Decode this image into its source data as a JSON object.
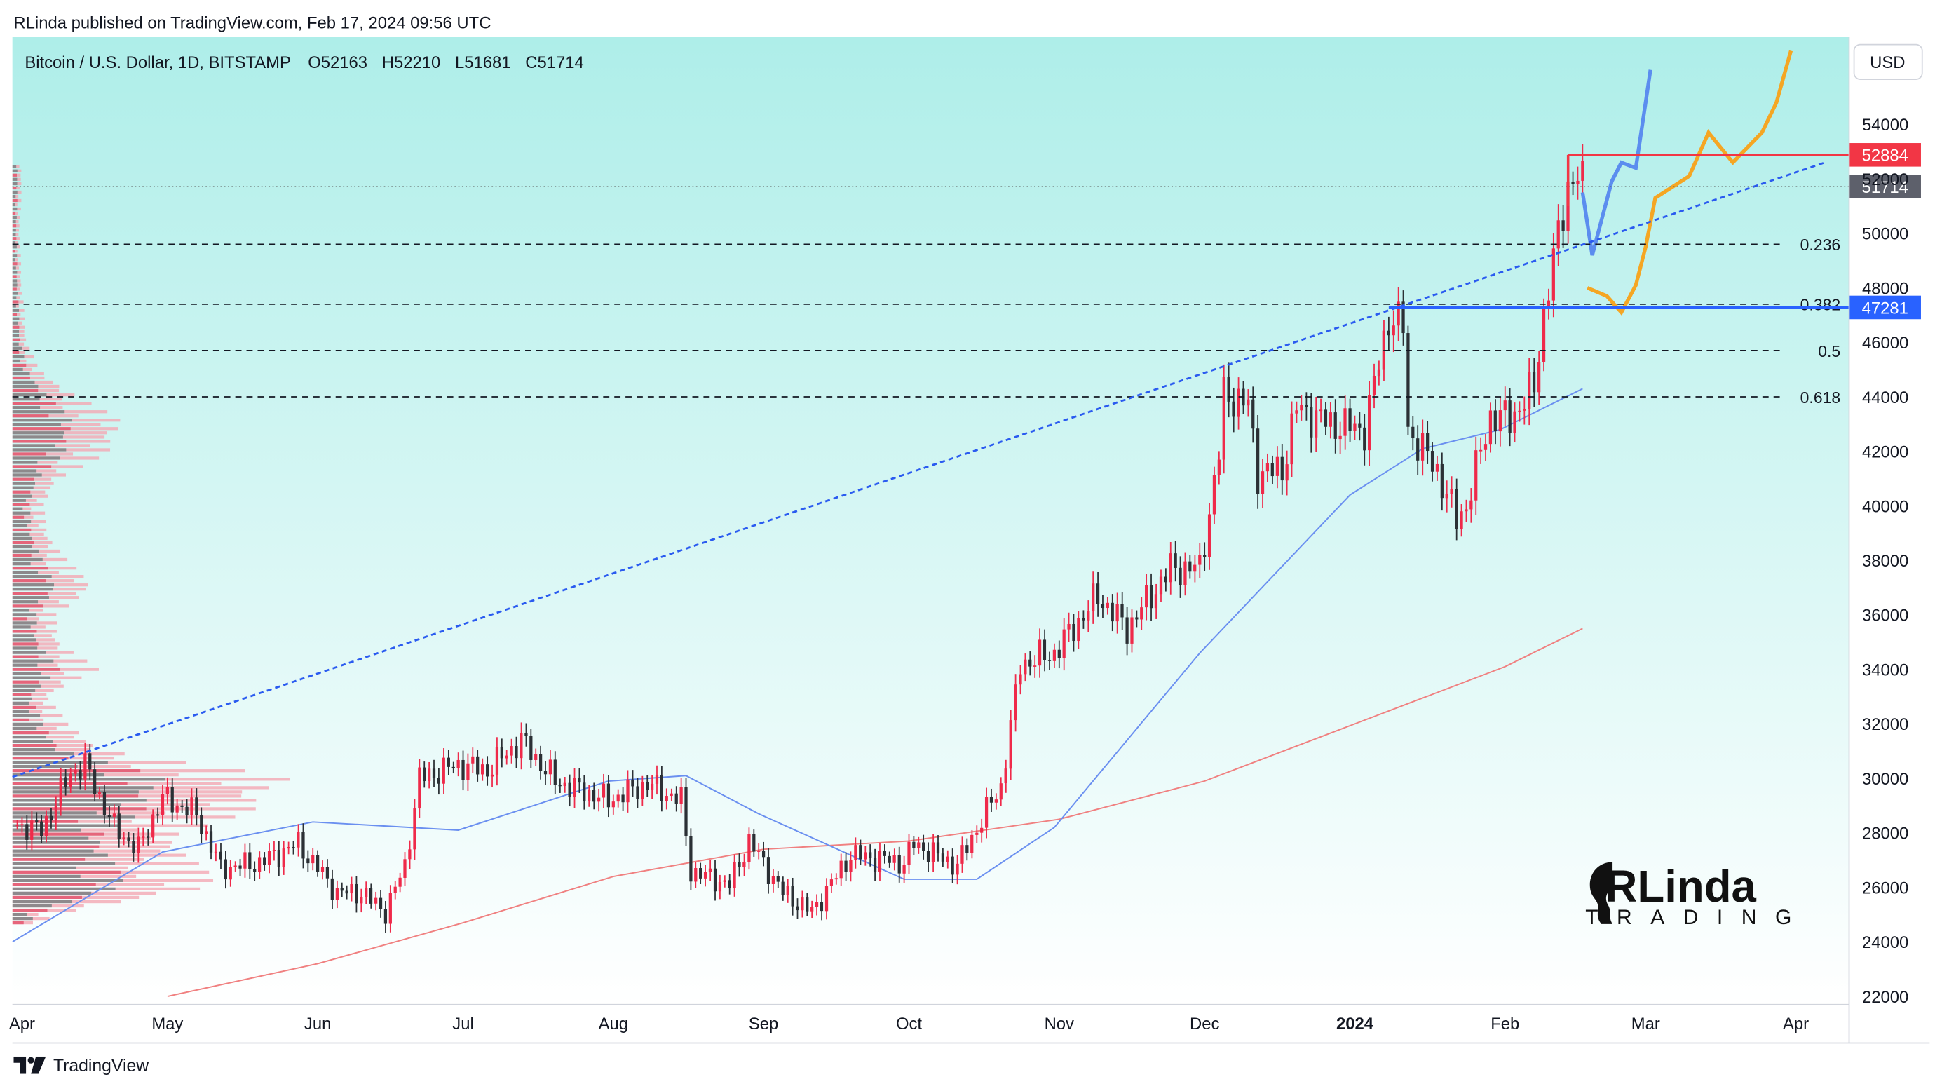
{
  "header": {
    "published": "RLinda published on TradingView.com, Feb 17, 2024 09:56 UTC",
    "legend": "Bitcoin / U.S. Dollar, 1D, BITSTAMP",
    "ohlc": {
      "O": "52163",
      "H": "52210",
      "L": "51681",
      "C": "51714"
    }
  },
  "footer": {
    "brand": "TradingView",
    "icon": "tradingview-logo-icon"
  },
  "currency_badge": "USD",
  "logo": {
    "line1": "RLinda",
    "line2": "TRADING"
  },
  "colors": {
    "up": "#ef2a4a",
    "down": "#2b3035",
    "ma_fast": "#6a8ff0",
    "ma_slow": "#f08080",
    "trend": "#2a5bf0",
    "resistance": "#f23645",
    "support": "#2962ff",
    "proj_blue": "#5b8def",
    "proj_orange": "#f5a623",
    "bg_top": "#aeeee9",
    "bg_bottom": "#ffffff"
  },
  "chart_data": {
    "type": "candlestick",
    "symbol": "Bitcoin / U.S. Dollar",
    "timeframe": "1D",
    "exchange": "BITSTAMP",
    "ylim": [
      22000,
      57200
    ],
    "y_ticks": [
      "22000",
      "24000",
      "26000",
      "28000",
      "30000",
      "32000",
      "34000",
      "36000",
      "38000",
      "40000",
      "42000",
      "44000",
      "46000",
      "48000",
      "50000",
      "52000",
      "54000",
      "56000"
    ],
    "x_labels": [
      {
        "label": "Apr",
        "date": "2023-04-01"
      },
      {
        "label": "May",
        "date": "2023-05-01"
      },
      {
        "label": "Jun",
        "date": "2023-06-01"
      },
      {
        "label": "Jul",
        "date": "2023-07-01"
      },
      {
        "label": "Aug",
        "date": "2023-08-01"
      },
      {
        "label": "Sep",
        "date": "2023-09-01"
      },
      {
        "label": "Oct",
        "date": "2023-10-01"
      },
      {
        "label": "Nov",
        "date": "2023-11-01"
      },
      {
        "label": "Dec",
        "date": "2023-12-01"
      },
      {
        "label": "2024",
        "date": "2024-01-01",
        "bold": true
      },
      {
        "label": "Feb",
        "date": "2024-02-01"
      },
      {
        "label": "Mar",
        "date": "2024-03-01"
      },
      {
        "label": "Apr",
        "date": "2024-04-01"
      }
    ],
    "x_start": "2023-03-30",
    "x_end": "2024-04-12",
    "price_anchors": [
      [
        "2023-03-31",
        28300
      ],
      [
        "2023-04-05",
        28100
      ],
      [
        "2023-04-11",
        30200
      ],
      [
        "2023-04-14",
        30500
      ],
      [
        "2023-04-20",
        28200
      ],
      [
        "2023-04-25",
        27400
      ],
      [
        "2023-04-30",
        29300
      ],
      [
        "2023-05-07",
        28700
      ],
      [
        "2023-05-12",
        26700
      ],
      [
        "2023-05-20",
        26900
      ],
      [
        "2023-05-28",
        27600
      ],
      [
        "2023-06-05",
        25800
      ],
      [
        "2023-06-10",
        25800
      ],
      [
        "2023-06-15",
        25100
      ],
      [
        "2023-06-19",
        26800
      ],
      [
        "2023-06-22",
        30000
      ],
      [
        "2023-06-30",
        30500
      ],
      [
        "2023-07-06",
        30300
      ],
      [
        "2023-07-13",
        31400
      ],
      [
        "2023-07-20",
        29900
      ],
      [
        "2023-07-31",
        29200
      ],
      [
        "2023-08-08",
        29800
      ],
      [
        "2023-08-15",
        29200
      ],
      [
        "2023-08-17",
        26600
      ],
      [
        "2023-08-25",
        26100
      ],
      [
        "2023-08-29",
        27700
      ],
      [
        "2023-09-05",
        25800
      ],
      [
        "2023-09-11",
        25100
      ],
      [
        "2023-09-19",
        27200
      ],
      [
        "2023-09-30",
        26900
      ],
      [
        "2023-10-02",
        27600
      ],
      [
        "2023-10-11",
        26800
      ],
      [
        "2023-10-16",
        28500
      ],
      [
        "2023-10-20",
        29700
      ],
      [
        "2023-10-23",
        33000
      ],
      [
        "2023-10-24",
        34200
      ],
      [
        "2023-10-31",
        34600
      ],
      [
        "2023-11-09",
        36700
      ],
      [
        "2023-11-15",
        35500
      ],
      [
        "2023-11-24",
        37700
      ],
      [
        "2023-11-30",
        37700
      ],
      [
        "2023-12-04",
        41900
      ],
      [
        "2023-12-05",
        44100
      ],
      [
        "2023-12-10",
        43700
      ],
      [
        "2023-12-12",
        41200
      ],
      [
        "2023-12-17",
        41300
      ],
      [
        "2023-12-20",
        43600
      ],
      [
        "2023-12-27",
        43000
      ],
      [
        "2024-01-03",
        42800
      ],
      [
        "2024-01-08",
        46900
      ],
      [
        "2024-01-11",
        46600
      ],
      [
        "2024-01-12",
        42800
      ],
      [
        "2024-01-18",
        41300
      ],
      [
        "2024-01-22",
        39500
      ],
      [
        "2024-01-24",
        40000
      ],
      [
        "2024-01-29",
        43300
      ],
      [
        "2024-02-02",
        43200
      ],
      [
        "2024-02-07",
        44300
      ],
      [
        "2024-02-09",
        47100
      ],
      [
        "2024-02-12",
        49900
      ],
      [
        "2024-02-14",
        51800
      ],
      [
        "2024-02-16",
        52100
      ],
      [
        "2024-02-17",
        51714
      ]
    ],
    "ma_fast": [
      [
        "2023-03-30",
        24000
      ],
      [
        "2023-04-30",
        27300
      ],
      [
        "2023-05-31",
        28400
      ],
      [
        "2023-06-30",
        28100
      ],
      [
        "2023-07-31",
        29900
      ],
      [
        "2023-08-16",
        30100
      ],
      [
        "2023-08-31",
        28700
      ],
      [
        "2023-09-30",
        26300
      ],
      [
        "2023-10-15",
        26300
      ],
      [
        "2023-10-31",
        28200
      ],
      [
        "2023-11-30",
        34600
      ],
      [
        "2023-12-31",
        40400
      ],
      [
        "2024-01-15",
        42100
      ],
      [
        "2024-01-31",
        42800
      ],
      [
        "2024-02-17",
        44300
      ]
    ],
    "ma_slow": [
      [
        "2023-05-01",
        22000
      ],
      [
        "2023-06-01",
        23200
      ],
      [
        "2023-07-01",
        24700
      ],
      [
        "2023-08-01",
        26400
      ],
      [
        "2023-09-01",
        27400
      ],
      [
        "2023-10-01",
        27700
      ],
      [
        "2023-11-01",
        28500
      ],
      [
        "2023-12-01",
        29900
      ],
      [
        "2024-01-01",
        32000
      ],
      [
        "2024-02-01",
        34100
      ],
      [
        "2024-02-17",
        35500
      ]
    ],
    "trendline": {
      "from": [
        "2023-03-30",
        30050
      ],
      "to": [
        "2024-04-07",
        52600
      ]
    },
    "fibonacci": [
      {
        "label": "0.236",
        "value": 49600
      },
      {
        "label": "0.382",
        "value": 47400
      },
      {
        "label": "0.5",
        "value": 45700
      },
      {
        "label": "0.618",
        "value": 44000
      }
    ],
    "resistance": {
      "value": 52884,
      "from": "2024-02-14",
      "label": "52884"
    },
    "support": {
      "value": 47281,
      "from": "2024-01-08",
      "label": "47281"
    },
    "last_price": {
      "value": 51714,
      "label": "51714"
    },
    "projection_blue": [
      [
        "2024-02-17",
        51500
      ],
      [
        "2024-02-19",
        49200
      ],
      [
        "2024-02-23",
        51900
      ],
      [
        "2024-02-25",
        52600
      ],
      [
        "2024-02-28",
        52400
      ],
      [
        "2024-03-01",
        54800
      ],
      [
        "2024-03-02",
        56000
      ]
    ],
    "projection_orange": [
      [
        "2024-02-18",
        48000
      ],
      [
        "2024-02-22",
        47700
      ],
      [
        "2024-02-25",
        47100
      ],
      [
        "2024-02-28",
        48100
      ],
      [
        "2024-03-01",
        49500
      ],
      [
        "2024-03-03",
        51300
      ],
      [
        "2024-03-10",
        52100
      ],
      [
        "2024-03-14",
        53700
      ],
      [
        "2024-03-19",
        52600
      ],
      [
        "2024-03-25",
        53700
      ],
      [
        "2024-03-28",
        54800
      ],
      [
        "2024-03-31",
        56700
      ]
    ]
  }
}
